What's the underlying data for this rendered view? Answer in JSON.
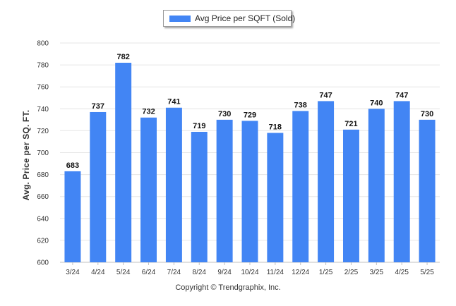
{
  "legend": {
    "label": "Avg Price per SQFT (Sold)"
  },
  "copyright": "Copyright © Trendgraphix, Inc.",
  "colors": {
    "bar": "#4285f4",
    "grid": "#e6e6e6",
    "axis": "#c0c0c0"
  },
  "chart_data": {
    "type": "bar",
    "title": "",
    "xlabel": "",
    "ylabel": "Avg. Price per SQ. FT.",
    "ylim": [
      600,
      800
    ],
    "yticks": [
      600,
      620,
      640,
      660,
      680,
      700,
      720,
      740,
      760,
      780,
      800
    ],
    "categories": [
      "3/24",
      "4/24",
      "5/24",
      "6/24",
      "7/24",
      "8/24",
      "9/24",
      "10/24",
      "11/24",
      "12/24",
      "1/25",
      "2/25",
      "3/25",
      "4/25",
      "5/25"
    ],
    "series": [
      {
        "name": "Avg Price per SQFT (Sold)",
        "values": [
          683,
          737,
          782,
          732,
          741,
          719,
          730,
          729,
          718,
          738,
          747,
          721,
          740,
          747,
          730
        ]
      }
    ],
    "grid": true,
    "legend_position": "top-center",
    "data_labels": true
  }
}
